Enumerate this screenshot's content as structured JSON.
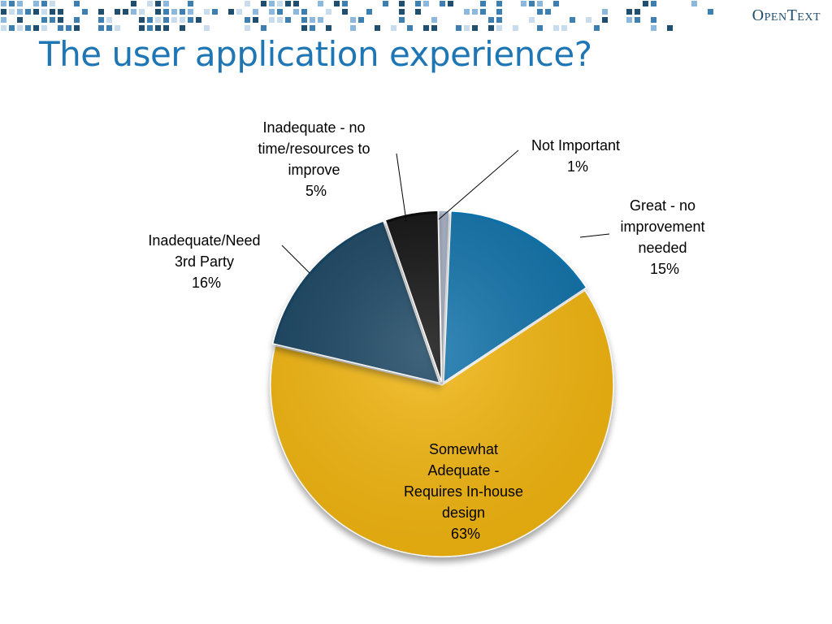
{
  "slide": {
    "title": "The user application experience?",
    "logo": "OpenText"
  },
  "colors": {
    "title": "#1f76b4",
    "great": "#0e6fa8",
    "somewhat": "#f2b50c",
    "need3rd": "#12435e",
    "inadequate_no_time": "#0d0d0d",
    "not_important": "#a9b4c9"
  },
  "chart_data": {
    "type": "pie",
    "title": "",
    "slices": [
      {
        "label": "Not Important",
        "value": 1,
        "percent_label": "1%",
        "color": "#a9b4c9"
      },
      {
        "label": "Great - no improvement needed",
        "value": 15,
        "percent_label": "15%",
        "color": "#0e6fa8"
      },
      {
        "label": "Somewhat Adequate - Requires In-house design",
        "value": 63,
        "percent_label": "63%",
        "color": "#f2b50c"
      },
      {
        "label": "Inadequate/Need 3rd Party",
        "value": 16,
        "percent_label": "16%",
        "color": "#12435e"
      },
      {
        "label": "Inadequate - no time/resources to improve",
        "value": 5,
        "percent_label": "5%",
        "color": "#0d0d0d"
      }
    ],
    "legend": "none",
    "data_labels": "outside with leader lines"
  }
}
